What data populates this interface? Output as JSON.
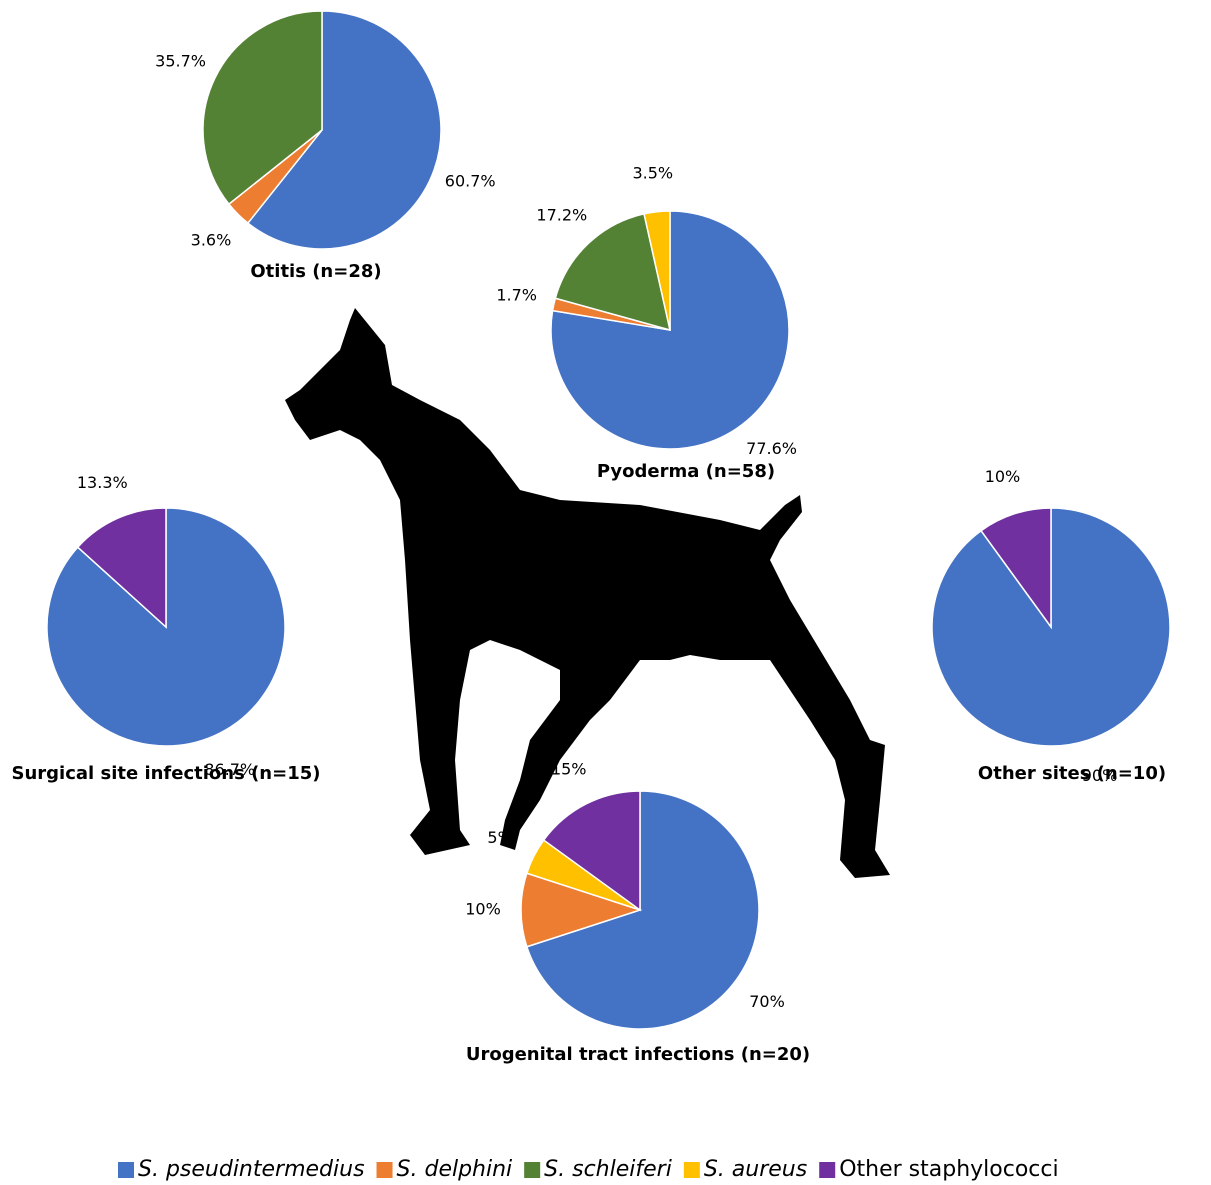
{
  "chart_data": [
    {
      "type": "pie",
      "title": "Otitis (n=28)",
      "categories": [
        "S. pseudintermedius",
        "S. delphini",
        "S. schleiferi"
      ],
      "values": [
        60.7,
        3.6,
        35.7
      ],
      "value_labels": [
        "60.7%",
        "3.6%",
        "35.7%"
      ],
      "colors": [
        "#4472c4",
        "#ed7d31",
        "#548235"
      ]
    },
    {
      "type": "pie",
      "title": "Pyoderma (n=58)",
      "categories": [
        "S. pseudintermedius",
        "S. delphini",
        "S. schleiferi",
        "S. aureus"
      ],
      "values": [
        77.6,
        1.7,
        17.2,
        3.5
      ],
      "value_labels": [
        "77.6%",
        "1.7%",
        "17.2%",
        "3.5%"
      ],
      "colors": [
        "#4472c4",
        "#ed7d31",
        "#548235",
        "#ffc000"
      ]
    },
    {
      "type": "pie",
      "title": "Surgical site infections (n=15)",
      "categories": [
        "S. pseudintermedius",
        "Other staphylococci"
      ],
      "values": [
        86.7,
        13.3
      ],
      "value_labels": [
        "86.7%",
        "13.3%"
      ],
      "colors": [
        "#4472c4",
        "#7030a0"
      ]
    },
    {
      "type": "pie",
      "title": "Other sites (n=10)",
      "categories": [
        "S. pseudintermedius",
        "Other staphylococci"
      ],
      "values": [
        90,
        10
      ],
      "value_labels": [
        "90%",
        "10%"
      ],
      "colors": [
        "#4472c4",
        "#7030a0"
      ]
    },
    {
      "type": "pie",
      "title": "Urogenital tract infections (n=20)",
      "categories": [
        "S. pseudintermedius",
        "S. delphini",
        "S. aureus",
        "Other staphylococci"
      ],
      "values": [
        70,
        10,
        5,
        15
      ],
      "value_labels": [
        "70%",
        "10%",
        "5%",
        "15%"
      ],
      "colors": [
        "#4472c4",
        "#ed7d31",
        "#ffc000",
        "#7030a0"
      ]
    }
  ],
  "legend": [
    {
      "name": "S. pseudintermedius",
      "color": "#4472c4"
    },
    {
      "name": "S. delphini",
      "color": "#ed7d31"
    },
    {
      "name": "S. schleiferi",
      "color": "#548235"
    },
    {
      "name": "S. aureus",
      "color": "#ffc000"
    },
    {
      "name": "Other staphylococci",
      "color": "#7030a0"
    }
  ]
}
